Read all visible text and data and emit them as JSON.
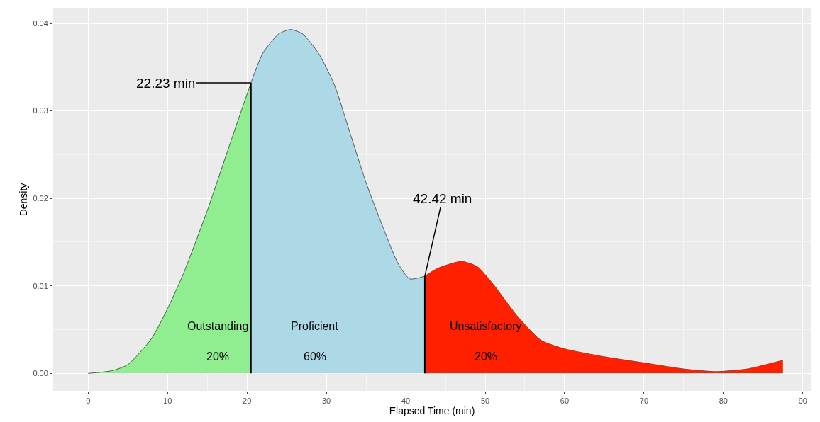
{
  "chart_data": {
    "type": "area",
    "xlabel": "Elapsed Time (min)",
    "ylabel": "Density",
    "series": [
      {
        "name": "Outstanding",
        "color": "#90ee90",
        "x": [
          0,
          3,
          5,
          8,
          10,
          12,
          15,
          18,
          20.5
        ],
        "values": [
          0,
          0.0003,
          0.001,
          0.004,
          0.0074,
          0.0114,
          0.0186,
          0.0266,
          0.0332
        ]
      },
      {
        "name": "Proficient",
        "color": "#add8e6",
        "x": [
          20.5,
          22,
          24,
          25.5,
          27,
          29,
          31,
          33,
          35,
          37,
          39,
          40.5,
          42.4
        ],
        "values": [
          0.0332,
          0.0366,
          0.0388,
          0.0393,
          0.0388,
          0.0366,
          0.033,
          0.0274,
          0.0218,
          0.017,
          0.0126,
          0.0108,
          0.0111
        ]
      },
      {
        "name": "Unsatisfactory",
        "color": "#ff2000",
        "x": [
          42.4,
          44,
          47,
          49,
          51,
          54,
          57,
          60,
          65,
          70,
          75,
          79,
          83,
          87.5
        ],
        "values": [
          0.0111,
          0.012,
          0.0128,
          0.0122,
          0.0102,
          0.0066,
          0.0038,
          0.0028,
          0.0019,
          0.0012,
          0.0005,
          0.0002,
          0.0005,
          0.0015
        ]
      }
    ],
    "ref_lines": [
      {
        "axis": "x",
        "value": 20.5,
        "color": "#000000"
      },
      {
        "axis": "x",
        "value": 42.4,
        "color": "#000000"
      }
    ],
    "annotations": [
      {
        "text": "22.23 min",
        "x": 20.5,
        "y": 0.0332
      },
      {
        "text": "42.42 min",
        "x": 42.4,
        "y": 0.0111
      },
      "20%",
      "60%",
      "20%"
    ],
    "xlim": [
      -4.4,
      91
    ],
    "ylim": [
      -0.002,
      0.0417
    ],
    "xticks": [
      0,
      10,
      20,
      30,
      40,
      50,
      60,
      70,
      80,
      90
    ],
    "yticks": [
      {
        "value": 0,
        "label": "0.00"
      },
      {
        "value": 0.01,
        "label": "0.01"
      },
      {
        "value": 0.02,
        "label": "0.02"
      },
      {
        "value": 0.03,
        "label": "0.03"
      },
      {
        "value": 0.04,
        "label": "0.04"
      }
    ],
    "grid": true,
    "legend": false
  }
}
